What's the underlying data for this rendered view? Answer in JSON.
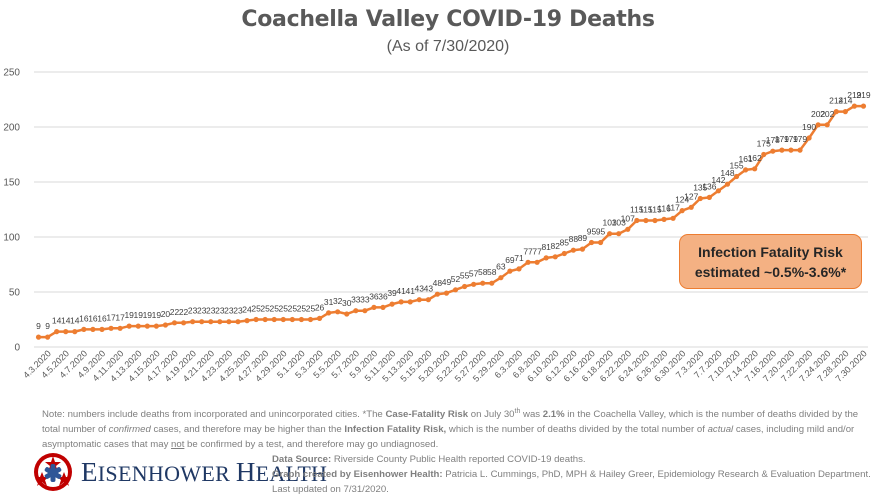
{
  "chart_data": {
    "type": "line",
    "title": "Coachella Valley COVID-19 Deaths",
    "subtitle": "(As of 7/30/2020)",
    "xlabel": "",
    "ylabel": "",
    "ylim": [
      0,
      250
    ],
    "yticks": [
      0,
      50,
      100,
      150,
      200,
      250
    ],
    "grid": true,
    "series_color": "#ed7d31",
    "x_tick_labels": [
      "4.3.2020",
      "4.5.2020",
      "4.7.2020",
      "4.9.2020",
      "4.11.2020",
      "4.13.2020",
      "4.15.2020",
      "4.17.2020",
      "4.19.2020",
      "4.21.2020",
      "4.23.2020",
      "4.25.2020",
      "4.27.2020",
      "4.29.2020",
      "5.1.2020",
      "5.3.2020",
      "5.5.2020",
      "5.7.2020",
      "5.9.2020",
      "5.11.2020",
      "5.13.2020",
      "5.15.2020",
      "5.20.2020",
      "5.22.2020",
      "5.27.2020",
      "5.29.2020",
      "6.3.2020",
      "6.8.2020",
      "6.10.2020",
      "6.12.2020",
      "6.16.2020",
      "6.18.2020",
      "6.22.2020",
      "6.24.2020",
      "6.26.2020",
      "6.30.2020",
      "7.3.2020",
      "7.7.2020",
      "7.10.2020",
      "7.14.2020",
      "7.16.2020",
      "7.20.2020",
      "7.22.2020",
      "7.24.2020",
      "7.28.2020",
      "7.30.2020"
    ],
    "series": [
      {
        "name": "Deaths",
        "values": [
          9,
          9,
          14,
          14,
          14,
          16,
          16,
          16,
          17,
          17,
          19,
          19,
          19,
          19,
          20,
          22,
          22,
          23,
          23,
          23,
          23,
          23,
          23,
          24,
          25,
          25,
          25,
          25,
          25,
          25,
          25,
          26,
          31,
          32,
          30,
          33,
          33,
          36,
          36,
          39,
          41,
          41,
          43,
          43,
          48,
          49,
          52,
          55,
          57,
          58,
          58,
          63,
          69,
          71,
          77,
          77,
          81,
          82,
          85,
          88,
          89,
          95,
          95,
          103,
          103,
          107,
          115,
          115,
          115,
          116,
          117,
          124,
          127,
          135,
          136,
          142,
          148,
          155,
          161,
          162,
          175,
          178,
          179,
          179,
          179,
          190,
          202,
          202,
          214,
          214,
          219,
          219
        ]
      }
    ],
    "annotations": [
      {
        "text_line1": "Infection Fatality Risk",
        "text_line2": "estimated ~0.5%-3.6%*"
      }
    ]
  },
  "callout": {
    "line1": "Infection Fatality Risk",
    "line2": "estimated ~0.5%-3.6%*"
  },
  "note": {
    "p1": "Note: numbers include deaths from incorporated and unincorporated cities. *The ",
    "b1": "Case-Fatality Risk",
    "p2": " on July 30",
    "sup": "th",
    "p3": " was ",
    "b2": "2.1%",
    "p4": " in the Coachella Valley, which is the number of deaths divided by the total number of ",
    "i1": "confirmed",
    "p5": " cases, and therefore may be higher than the ",
    "b3": "Infection Fatality Risk,",
    "p6": " which is the number of deaths divided by the total number of ",
    "i2": "actual",
    "p7": " cases, including mild and/or asymptomatic cases that may ",
    "u1": "not",
    "p8": " be confirmed by a test, and therefore may go undiagnosed."
  },
  "logo": {
    "name_first_cap": "E",
    "name_first_rest": "ISENHOWER",
    "name_second_cap": "H",
    "name_second_rest": "EALTH"
  },
  "source": {
    "label1": "Data Source:",
    "text1": " Riverside County Public Health reported COVID-19 deaths.",
    "label2": "Graph created by Eisenhower Health:",
    "text2": " Patricia L. Cummings, PhD, MPH & Hailey Greer, Epidemiology Research & Evaluation Department. Last updated on 7/31/2020."
  }
}
